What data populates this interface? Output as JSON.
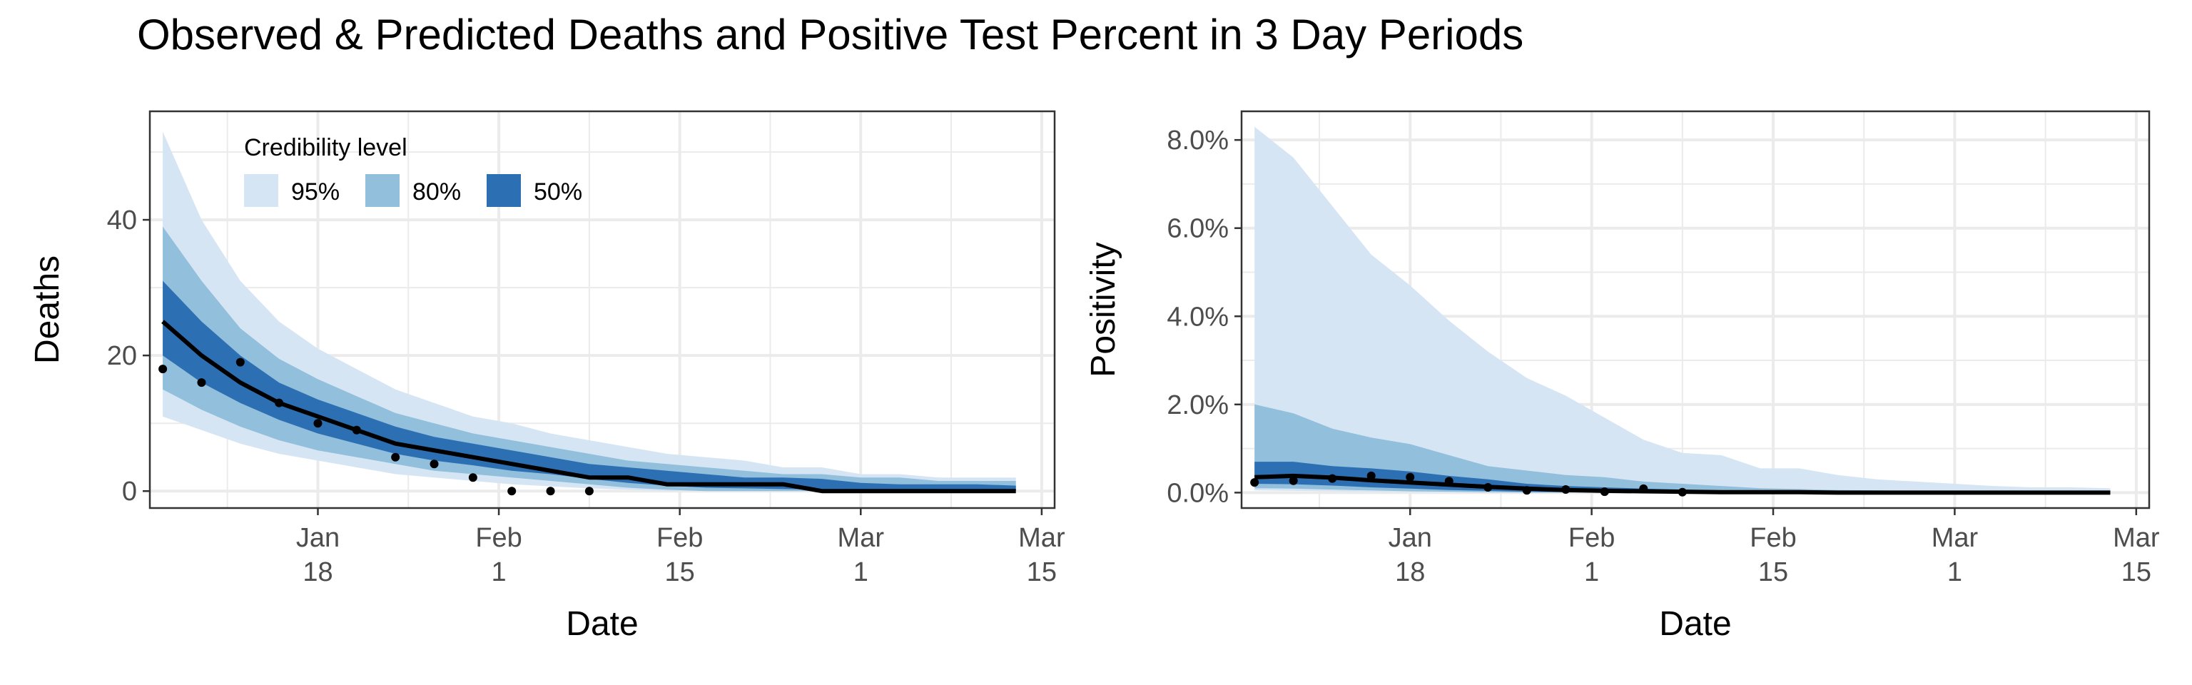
{
  "title": "Observed & Predicted Deaths and Positive Test Percent in 3 Day Periods",
  "colors": {
    "ci95": "#d6e5f4",
    "ci80": "#91bfdc",
    "ci50": "#2c6fb3",
    "line": "#000000",
    "grid": "#ebebeb",
    "border": "#333333"
  },
  "legend": {
    "title": "Credibility level",
    "items": [
      {
        "label": "95%",
        "color": "#d6e5f4"
      },
      {
        "label": "80%",
        "color": "#91bfdc"
      },
      {
        "label": "50%",
        "color": "#2c6fb3"
      }
    ]
  },
  "chart_data": [
    {
      "type": "area",
      "title": "",
      "xlabel": "Date",
      "ylabel": "Deaths",
      "xlim": [
        "2021-01-05",
        "2021-03-16"
      ],
      "ylim": [
        -2.5,
        56
      ],
      "x_ticks": [
        {
          "date": "2021-01-18",
          "line1": "Jan",
          "line2": "18"
        },
        {
          "date": "2021-02-01",
          "line1": "Feb",
          "line2": "1"
        },
        {
          "date": "2021-02-15",
          "line1": "Feb",
          "line2": "15"
        },
        {
          "date": "2021-03-01",
          "line1": "Mar",
          "line2": "1"
        },
        {
          "date": "2021-03-15",
          "line1": "Mar",
          "line2": "15"
        }
      ],
      "y_ticks": [
        {
          "value": 0,
          "label": "0"
        },
        {
          "value": 20,
          "label": "20"
        },
        {
          "value": 40,
          "label": "40"
        }
      ],
      "legend_position": "top-left",
      "grid": true,
      "dates": [
        "2021-01-06",
        "2021-01-09",
        "2021-01-12",
        "2021-01-15",
        "2021-01-18",
        "2021-01-21",
        "2021-01-24",
        "2021-01-27",
        "2021-01-30",
        "2021-02-02",
        "2021-02-05",
        "2021-02-08",
        "2021-02-11",
        "2021-02-14",
        "2021-02-17",
        "2021-02-20",
        "2021-02-23",
        "2021-02-26",
        "2021-03-01",
        "2021-03-04",
        "2021-03-07",
        "2021-03-10",
        "2021-03-13"
      ],
      "ci95_low": [
        11,
        9,
        7,
        5.5,
        4.5,
        3.5,
        2.5,
        2,
        1.5,
        1,
        0.7,
        0.4,
        0.2,
        0,
        0,
        0,
        0,
        0,
        0,
        0,
        0,
        0,
        0
      ],
      "ci95_high": [
        53,
        40,
        31,
        25,
        21,
        18,
        15,
        13,
        11,
        10,
        8.5,
        7.5,
        6.5,
        5.5,
        5,
        4.5,
        3.5,
        3.5,
        2.5,
        2.5,
        2,
        2,
        2
      ],
      "ci80_low": [
        15,
        12,
        9.5,
        7.5,
        6,
        5,
        4,
        3,
        2.5,
        2,
        1.5,
        1,
        0.5,
        0.2,
        0,
        0,
        0,
        0,
        0,
        0,
        0,
        0,
        0
      ],
      "ci80_high": [
        39,
        31,
        24,
        19.5,
        16.5,
        14,
        11.5,
        10,
        8.5,
        7.5,
        6.5,
        5.5,
        4.5,
        4,
        3.5,
        3,
        2.5,
        2.5,
        2,
        2,
        1.5,
        1.5,
        1.5
      ],
      "ci50_low": [
        20,
        16,
        13,
        10.5,
        8.5,
        7,
        5.5,
        4.5,
        3.8,
        3,
        2.5,
        1.8,
        1.2,
        0.8,
        0.5,
        0.4,
        0.3,
        0.2,
        0,
        0,
        0,
        0,
        0
      ],
      "ci50_high": [
        31,
        25,
        20,
        16,
        13.5,
        11.5,
        9.5,
        8,
        7,
        6,
        5,
        4,
        3.5,
        3,
        2.5,
        2,
        2,
        1.8,
        1.2,
        1,
        1,
        1,
        0.8
      ],
      "median": [
        25,
        20,
        16,
        13,
        11,
        9,
        7,
        6,
        5,
        4,
        3,
        2,
        2,
        1,
        1,
        1,
        1,
        0,
        0,
        0,
        0,
        0,
        0
      ],
      "observed_dates": [
        "2021-01-06",
        "2021-01-09",
        "2021-01-12",
        "2021-01-15",
        "2021-01-18",
        "2021-01-21",
        "2021-01-24",
        "2021-01-27",
        "2021-01-30",
        "2021-02-02",
        "2021-02-05",
        "2021-02-08"
      ],
      "observed": [
        18,
        16,
        19,
        13,
        10,
        9,
        5,
        4,
        2,
        0,
        0,
        0
      ]
    },
    {
      "type": "area",
      "title": "",
      "xlabel": "Date",
      "ylabel": "Positivity",
      "xlim": [
        "2021-01-05",
        "2021-03-16"
      ],
      "ylim": [
        -0.0035,
        0.0865
      ],
      "x_ticks": [
        {
          "date": "2021-01-18",
          "line1": "Jan",
          "line2": "18"
        },
        {
          "date": "2021-02-01",
          "line1": "Feb",
          "line2": "1"
        },
        {
          "date": "2021-02-15",
          "line1": "Feb",
          "line2": "15"
        },
        {
          "date": "2021-03-01",
          "line1": "Mar",
          "line2": "1"
        },
        {
          "date": "2021-03-15",
          "line1": "Mar",
          "line2": "15"
        }
      ],
      "y_ticks": [
        {
          "value": 0,
          "label": "0.0%"
        },
        {
          "value": 0.02,
          "label": "2.0%"
        },
        {
          "value": 0.04,
          "label": "4.0%"
        },
        {
          "value": 0.06,
          "label": "6.0%"
        },
        {
          "value": 0.08,
          "label": "8.0%"
        }
      ],
      "grid": true,
      "dates": [
        "2021-01-06",
        "2021-01-09",
        "2021-01-12",
        "2021-01-15",
        "2021-01-18",
        "2021-01-21",
        "2021-01-24",
        "2021-01-27",
        "2021-01-30",
        "2021-02-02",
        "2021-02-05",
        "2021-02-08",
        "2021-02-11",
        "2021-02-14",
        "2021-02-17",
        "2021-02-20",
        "2021-02-23",
        "2021-02-26",
        "2021-03-01",
        "2021-03-04",
        "2021-03-07",
        "2021-03-10",
        "2021-03-13"
      ],
      "ci95_low": [
        0.0005,
        0.0004,
        0.0003,
        0.0002,
        0.0001,
        0.0001,
        0,
        0,
        0,
        0,
        0,
        0,
        0,
        0,
        0,
        0,
        0,
        0,
        0,
        0,
        0,
        0,
        0
      ],
      "ci95_high": [
        0.083,
        0.076,
        0.065,
        0.054,
        0.047,
        0.039,
        0.032,
        0.026,
        0.022,
        0.017,
        0.012,
        0.009,
        0.0085,
        0.0055,
        0.0055,
        0.004,
        0.003,
        0.0025,
        0.002,
        0.0015,
        0.0012,
        0.0012,
        0.001
      ],
      "ci80_low": [
        0.001,
        0.0009,
        0.0007,
        0.0005,
        0.0003,
        0.0002,
        0.0001,
        0,
        0,
        0,
        0,
        0,
        0,
        0,
        0,
        0,
        0,
        0,
        0,
        0,
        0,
        0,
        0
      ],
      "ci80_high": [
        0.02,
        0.018,
        0.0145,
        0.0125,
        0.011,
        0.0085,
        0.006,
        0.005,
        0.004,
        0.0035,
        0.0025,
        0.002,
        0.0015,
        0.001,
        0.0008,
        0.0006,
        0.0005,
        0.0004,
        0.0003,
        0.0003,
        0.0002,
        0.0002,
        0.0002
      ],
      "ci50_low": [
        0.002,
        0.0019,
        0.0016,
        0.0012,
        0.0009,
        0.0006,
        0.0004,
        0.0002,
        0.0001,
        0.0001,
        0,
        0,
        0,
        0,
        0,
        0,
        0,
        0,
        0,
        0,
        0,
        0,
        0
      ],
      "ci50_high": [
        0.007,
        0.007,
        0.006,
        0.0055,
        0.0048,
        0.0038,
        0.003,
        0.002,
        0.0015,
        0.0012,
        0.0009,
        0.0007,
        0.0005,
        0.0004,
        0.0003,
        0.0002,
        0.0002,
        0.0001,
        0.0001,
        0.0001,
        0.0001,
        0.0001,
        0.0001
      ],
      "median": [
        0.0035,
        0.0038,
        0.0034,
        0.0028,
        0.0023,
        0.0018,
        0.0013,
        0.0009,
        0.0006,
        0.0004,
        0.0003,
        0.0002,
        0.0001,
        0.0001,
        0.0001,
        0,
        0,
        0,
        0,
        0,
        0,
        0,
        0
      ],
      "observed_dates": [
        "2021-01-06",
        "2021-01-09",
        "2021-01-12",
        "2021-01-15",
        "2021-01-18",
        "2021-01-21",
        "2021-01-24",
        "2021-01-27",
        "2021-01-30",
        "2021-02-02",
        "2021-02-05",
        "2021-02-08"
      ],
      "observed": [
        0.0023,
        0.0027,
        0.0032,
        0.0038,
        0.0035,
        0.0026,
        0.0012,
        0.0005,
        0.0007,
        0.0002,
        0.0009,
        0.0001
      ]
    }
  ]
}
